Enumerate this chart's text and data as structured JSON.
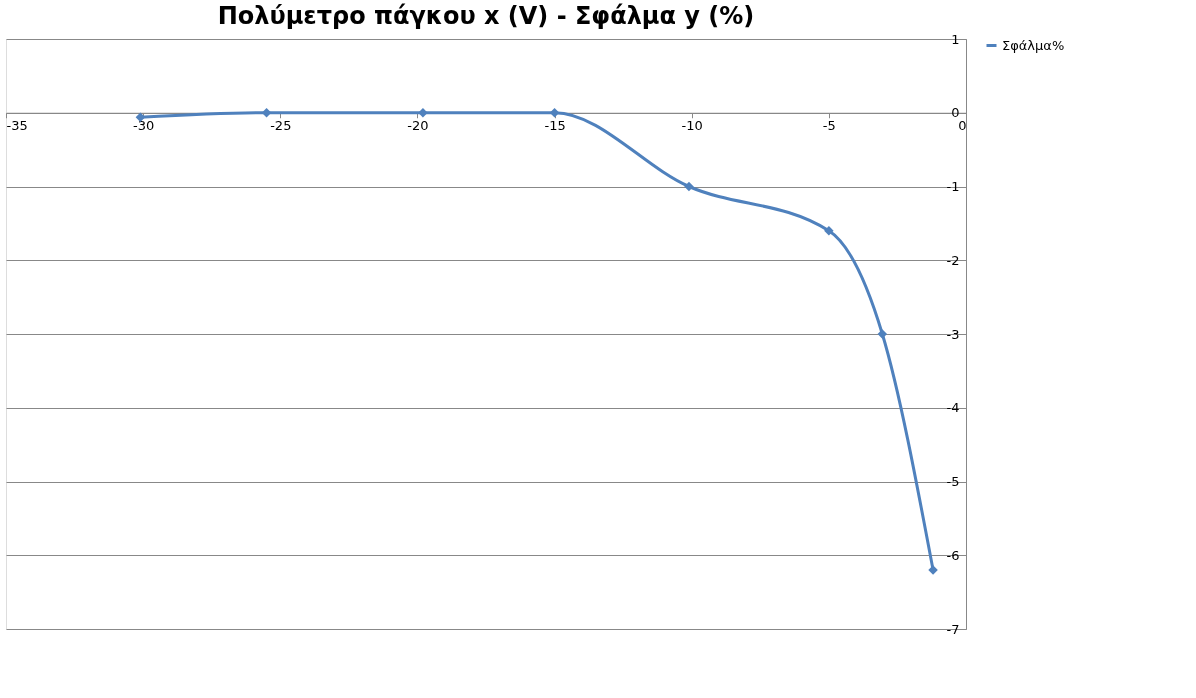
{
  "chart_data": {
    "type": "line",
    "title": "Πολύμετρο πάγκου x (V) - Σφάλμα y (%)",
    "series": [
      {
        "name": "Σφάλμα%",
        "color": "#4f81bd",
        "x": [
          -30.1,
          -25.5,
          -19.8,
          -15.0,
          -10.1,
          -5.0,
          -3.05,
          -1.2
        ],
        "values": [
          -0.06,
          0.0,
          0.0,
          0.0,
          -1.0,
          -1.6,
          -3.0,
          -6.2
        ]
      }
    ],
    "xlim": [
      -35,
      0
    ],
    "xticks": [
      -35,
      -30,
      -25,
      -20,
      -15,
      -10,
      -5,
      0
    ],
    "ylim": [
      -7,
      1
    ],
    "yticks": [
      -7,
      -6,
      -5,
      -4,
      -3,
      -2,
      -1,
      0,
      1
    ],
    "grid": "y",
    "legend": "right",
    "marker": "diamond",
    "line_style": "solid"
  }
}
